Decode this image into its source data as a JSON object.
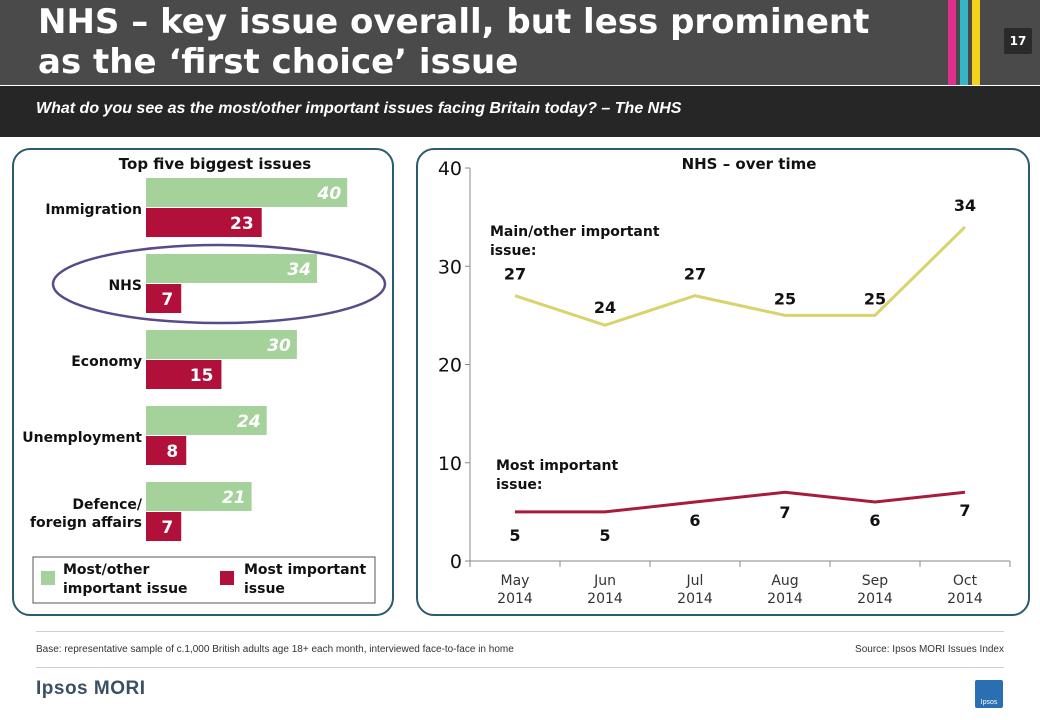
{
  "header": {
    "title_line1": "NHS – key issue overall, but less prominent",
    "title_line2": "as the ‘first choice’ issue",
    "page_number": "17",
    "stripe_colors": [
      "#e02e8a",
      "#36b5c9",
      "#f2d21b"
    ],
    "subtitle": "What do you see as the most/other important issues facing Britain today? – The NHS"
  },
  "colors": {
    "green": "#a5d29a",
    "crimson": "#b0103a",
    "line_yellow": "#d9d36b",
    "line_red": "#a81b3a",
    "panel_border": "#2b5b6e",
    "ellipse": "#5a4a8a"
  },
  "left_chart_title": "Top five biggest issues",
  "legend": {
    "green_label_line1": "Most/other",
    "green_label_line2": "important issue",
    "red_label_line1": "Most important",
    "red_label_line2": "issue"
  },
  "right_chart_title": "NHS – over time",
  "right_annotations": {
    "main_line1": "Main/other important",
    "main_line2": "issue:",
    "most_line1": "Most important",
    "most_line2": "issue:"
  },
  "chart_data": [
    {
      "type": "bar",
      "title": "Top five biggest issues",
      "orientation": "horizontal",
      "categories": [
        "Immigration",
        "NHS",
        "Economy",
        "Unemployment",
        "Defence/ foreign affairs"
      ],
      "category_lines": [
        [
          "Immigration"
        ],
        [
          "NHS"
        ],
        [
          "Economy"
        ],
        [
          "Unemployment"
        ],
        [
          "Defence/",
          "foreign affairs"
        ]
      ],
      "series": [
        {
          "name": "Most/other important issue",
          "values": [
            40,
            34,
            30,
            24,
            21
          ]
        },
        {
          "name": "Most important issue",
          "values": [
            23,
            7,
            15,
            8,
            7
          ]
        }
      ],
      "highlighted_category": "NHS",
      "legend_position": "bottom"
    },
    {
      "type": "line",
      "title": "NHS – over time",
      "x": [
        "May 2014",
        "Jun 2014",
        "Jul 2014",
        "Aug 2014",
        "Sep 2014",
        "Oct 2014"
      ],
      "x_lines": [
        [
          "May",
          "2014"
        ],
        [
          "Jun",
          "2014"
        ],
        [
          "Jul",
          "2014"
        ],
        [
          "Aug",
          "2014"
        ],
        [
          "Sep",
          "2014"
        ],
        [
          "Oct",
          "2014"
        ]
      ],
      "series": [
        {
          "name": "Main/other important issue:",
          "values": [
            27,
            24,
            27,
            25,
            25,
            34
          ]
        },
        {
          "name": "Most important issue:",
          "values": [
            5,
            5,
            6,
            7,
            6,
            7
          ]
        }
      ],
      "ylim": [
        0,
        40
      ],
      "yticks": [
        0,
        10,
        20,
        30,
        40
      ],
      "grid": false
    }
  ],
  "footer": {
    "base": "Base: representative sample of c.1,000 British adults age 18+ each month, interviewed face-to-face in home",
    "source": "Source: Ipsos MORI Issues Index",
    "logo_text": "Ipsos MORI",
    "logo_box_text": "Ipsos"
  }
}
